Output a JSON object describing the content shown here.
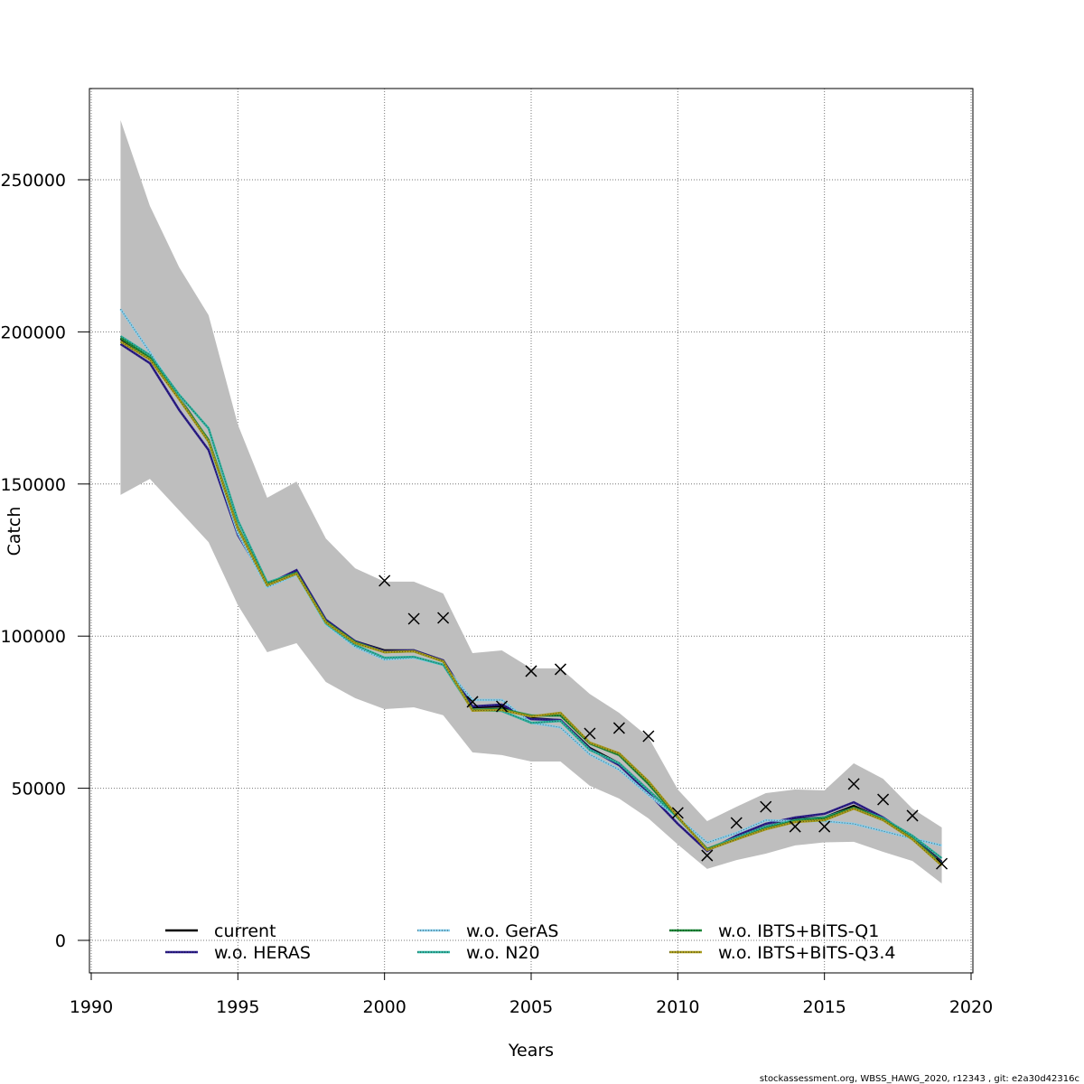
{
  "chart_data": {
    "type": "line",
    "title": "",
    "xlabel": "Years",
    "ylabel": "Catch",
    "xlim": [
      1990,
      2020
    ],
    "ylim": [
      0,
      250000
    ],
    "grid": true,
    "xticks": [
      1990,
      1995,
      2000,
      2005,
      2010,
      2015,
      2020
    ],
    "yticks": [
      0,
      50000,
      100000,
      150000,
      200000,
      250000
    ],
    "x": [
      1991,
      1992,
      1993,
      1994,
      1995,
      1996,
      1997,
      1998,
      1999,
      2000,
      2001,
      2002,
      2003,
      2004,
      2005,
      2006,
      2007,
      2008,
      2009,
      2010,
      2011,
      2012,
      2013,
      2014,
      2015,
      2016,
      2017,
      2018,
      2019
    ],
    "confidence_band": {
      "upper": [
        269600,
        241400,
        221200,
        205500,
        169500,
        145500,
        150800,
        132100,
        122300,
        117900,
        117900,
        114000,
        94400,
        95300,
        89400,
        89400,
        81000,
        74800,
        66800,
        49600,
        39200,
        43900,
        48400,
        49600,
        49300,
        58200,
        53100,
        43300,
        37100
      ],
      "lower": [
        146400,
        151700,
        141300,
        130900,
        110200,
        94700,
        97700,
        84900,
        79600,
        76000,
        76600,
        74000,
        61800,
        60900,
        58800,
        58800,
        50800,
        46600,
        40100,
        31500,
        23500,
        26400,
        28500,
        31200,
        32200,
        32400,
        29100,
        26100,
        18700
      ],
      "color": "#bebebe"
    },
    "series": [
      {
        "name": "current",
        "color": "#000000",
        "values": [
          197700,
          191200,
          178400,
          164200,
          135400,
          117000,
          121100,
          104800,
          98300,
          95300,
          95300,
          92000,
          76600,
          76900,
          73000,
          72400,
          63200,
          58200,
          49300,
          40400,
          30000,
          33800,
          37400,
          39800,
          40400,
          44200,
          39800,
          33800,
          25800
        ]
      },
      {
        "name": "w.o. HERAS",
        "color": "#2d1e8c",
        "values": [
          196000,
          189700,
          174300,
          161200,
          133300,
          117000,
          121700,
          105400,
          98300,
          95000,
          95300,
          92000,
          76900,
          77500,
          72700,
          72400,
          62900,
          57600,
          48400,
          38300,
          29400,
          34400,
          38300,
          40400,
          41600,
          45400,
          40400,
          33800,
          25500
        ]
      },
      {
        "name": "w.o. GerAS",
        "color": "#87ceeb",
        "values": [
          207500,
          193300,
          178400,
          163600,
          133900,
          116100,
          120200,
          103900,
          96500,
          92300,
          92900,
          90600,
          79000,
          79000,
          71500,
          70000,
          61100,
          56100,
          47800,
          40400,
          32100,
          35300,
          39500,
          39200,
          39200,
          38300,
          35900,
          33500,
          31200
        ]
      },
      {
        "name": "w.o. N20",
        "color": "#2fb3a0",
        "values": [
          198600,
          192400,
          179300,
          168300,
          138000,
          117600,
          120800,
          104200,
          97100,
          92900,
          93200,
          90600,
          75700,
          75400,
          71500,
          72100,
          62600,
          58200,
          49300,
          40400,
          30000,
          33800,
          37400,
          39500,
          40400,
          43600,
          40100,
          34400,
          27000
        ]
      },
      {
        "name": "w.o. IBTS+BITS-Q1",
        "color": "#1f8a3a",
        "values": [
          198000,
          191500,
          178000,
          164500,
          135800,
          117000,
          120800,
          104800,
          98000,
          94700,
          95000,
          91700,
          75800,
          76000,
          73900,
          73900,
          64700,
          60900,
          51400,
          40400,
          30000,
          33200,
          36800,
          39200,
          40100,
          43600,
          39800,
          33500,
          25200
        ]
      },
      {
        "name": "w.o. IBTS+BITS-Q3.4",
        "color": "#a89c1e",
        "values": [
          196800,
          190900,
          177800,
          163900,
          135400,
          116700,
          120500,
          104500,
          97700,
          94700,
          95000,
          91700,
          75500,
          75700,
          73600,
          74800,
          65000,
          61500,
          52300,
          40700,
          29700,
          33200,
          36500,
          38900,
          39500,
          43300,
          39500,
          33200,
          24600
        ]
      }
    ],
    "observations": {
      "x": [
        2000,
        2001,
        2002,
        2003,
        2004,
        2005,
        2006,
        2007,
        2008,
        2009,
        2010,
        2011,
        2012,
        2013,
        2014,
        2015,
        2016,
        2017,
        2018,
        2019
      ],
      "values": [
        118200,
        105700,
        106000,
        78400,
        76900,
        88500,
        89100,
        68000,
        69800,
        67100,
        41900,
        27900,
        38600,
        43900,
        37400,
        37400,
        51400,
        46300,
        41000,
        25200
      ],
      "marker": "x"
    },
    "legend": {
      "placement": "bottom",
      "columns": 3
    }
  },
  "footer": "stockassessment.org, WBSS_HAWG_2020, r12343 , git: e2a30d42316c"
}
